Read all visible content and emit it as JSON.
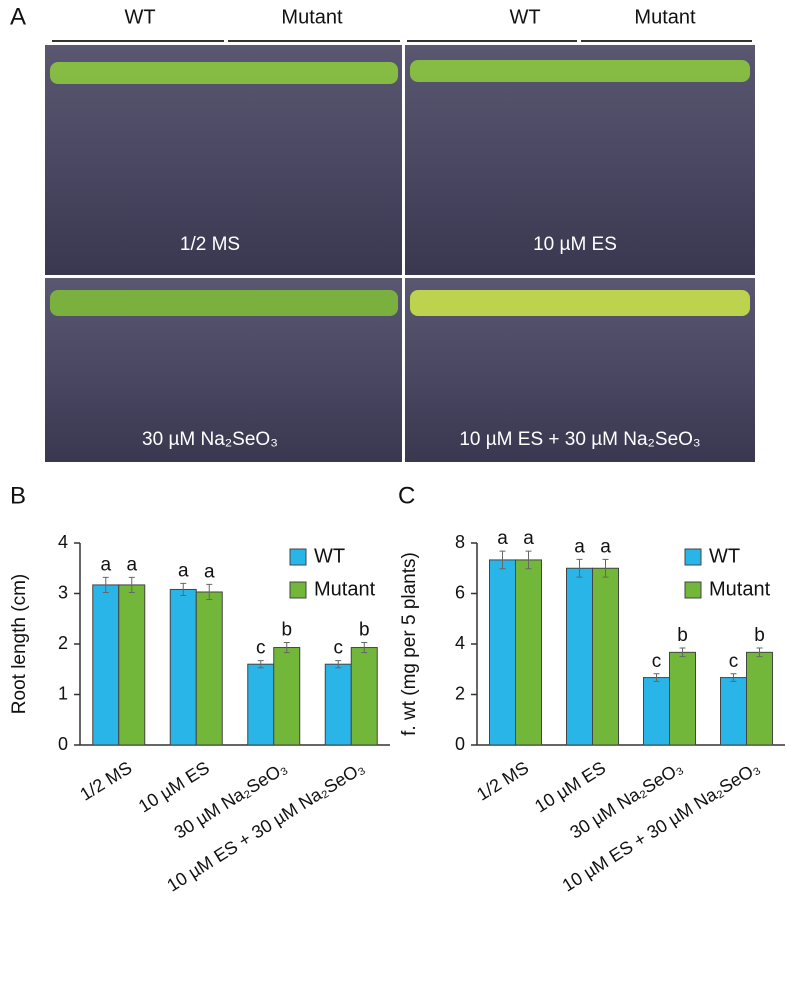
{
  "figure": {
    "panel_labels": [
      "A",
      "B",
      "C"
    ],
    "photo_panel": {
      "column_headers": [
        "WT",
        "Mutant",
        "WT",
        "Mutant"
      ],
      "plates": [
        "1/2 MS",
        "10 µM ES",
        "30 µM Na₂SeO₃",
        "10 µM ES + 30 µM Na₂SeO₃"
      ]
    }
  },
  "chart_data": [
    {
      "type": "bar",
      "ylabel": "Root length (cm)",
      "categories": [
        "1/2 MS",
        "10 µM ES",
        "30 µM Na₂SeO₃",
        "10 µM ES + 30 µM Na₂SeO₃"
      ],
      "series": [
        {
          "name": "WT",
          "color": "#29b5e8",
          "values": [
            3.17,
            3.08,
            1.6,
            1.6
          ],
          "errors": [
            0.15,
            0.12,
            0.07,
            0.07
          ],
          "significance": [
            "a",
            "a",
            "c",
            "c"
          ]
        },
        {
          "name": "Mutant",
          "color": "#72b73a",
          "values": [
            3.17,
            3.03,
            1.93,
            1.93
          ],
          "errors": [
            0.15,
            0.15,
            0.1,
            0.1
          ],
          "significance": [
            "a",
            "a",
            "b",
            "b"
          ]
        }
      ],
      "ylim": [
        0,
        4
      ],
      "yticks": [
        0,
        1,
        2,
        3,
        4
      ],
      "legend": "upper right"
    },
    {
      "type": "bar",
      "ylabel": "f. wt (mg per 5 plants)",
      "categories": [
        "1/2 MS",
        "10 µM ES",
        "30 µM Na₂SeO₃",
        "10 µM ES + 30 µM Na₂SeO₃"
      ],
      "series": [
        {
          "name": "WT",
          "color": "#29b5e8",
          "values": [
            7.33,
            7.0,
            2.67,
            2.67
          ],
          "errors": [
            0.35,
            0.35,
            0.15,
            0.15
          ],
          "significance": [
            "a",
            "a",
            "c",
            "c"
          ]
        },
        {
          "name": "Mutant",
          "color": "#72b73a",
          "values": [
            7.33,
            7.0,
            3.67,
            3.67
          ],
          "errors": [
            0.35,
            0.35,
            0.17,
            0.17
          ],
          "significance": [
            "a",
            "a",
            "b",
            "b"
          ]
        }
      ],
      "ylim": [
        0,
        8
      ],
      "yticks": [
        0,
        2,
        4,
        6,
        8
      ],
      "legend": "upper right"
    }
  ]
}
